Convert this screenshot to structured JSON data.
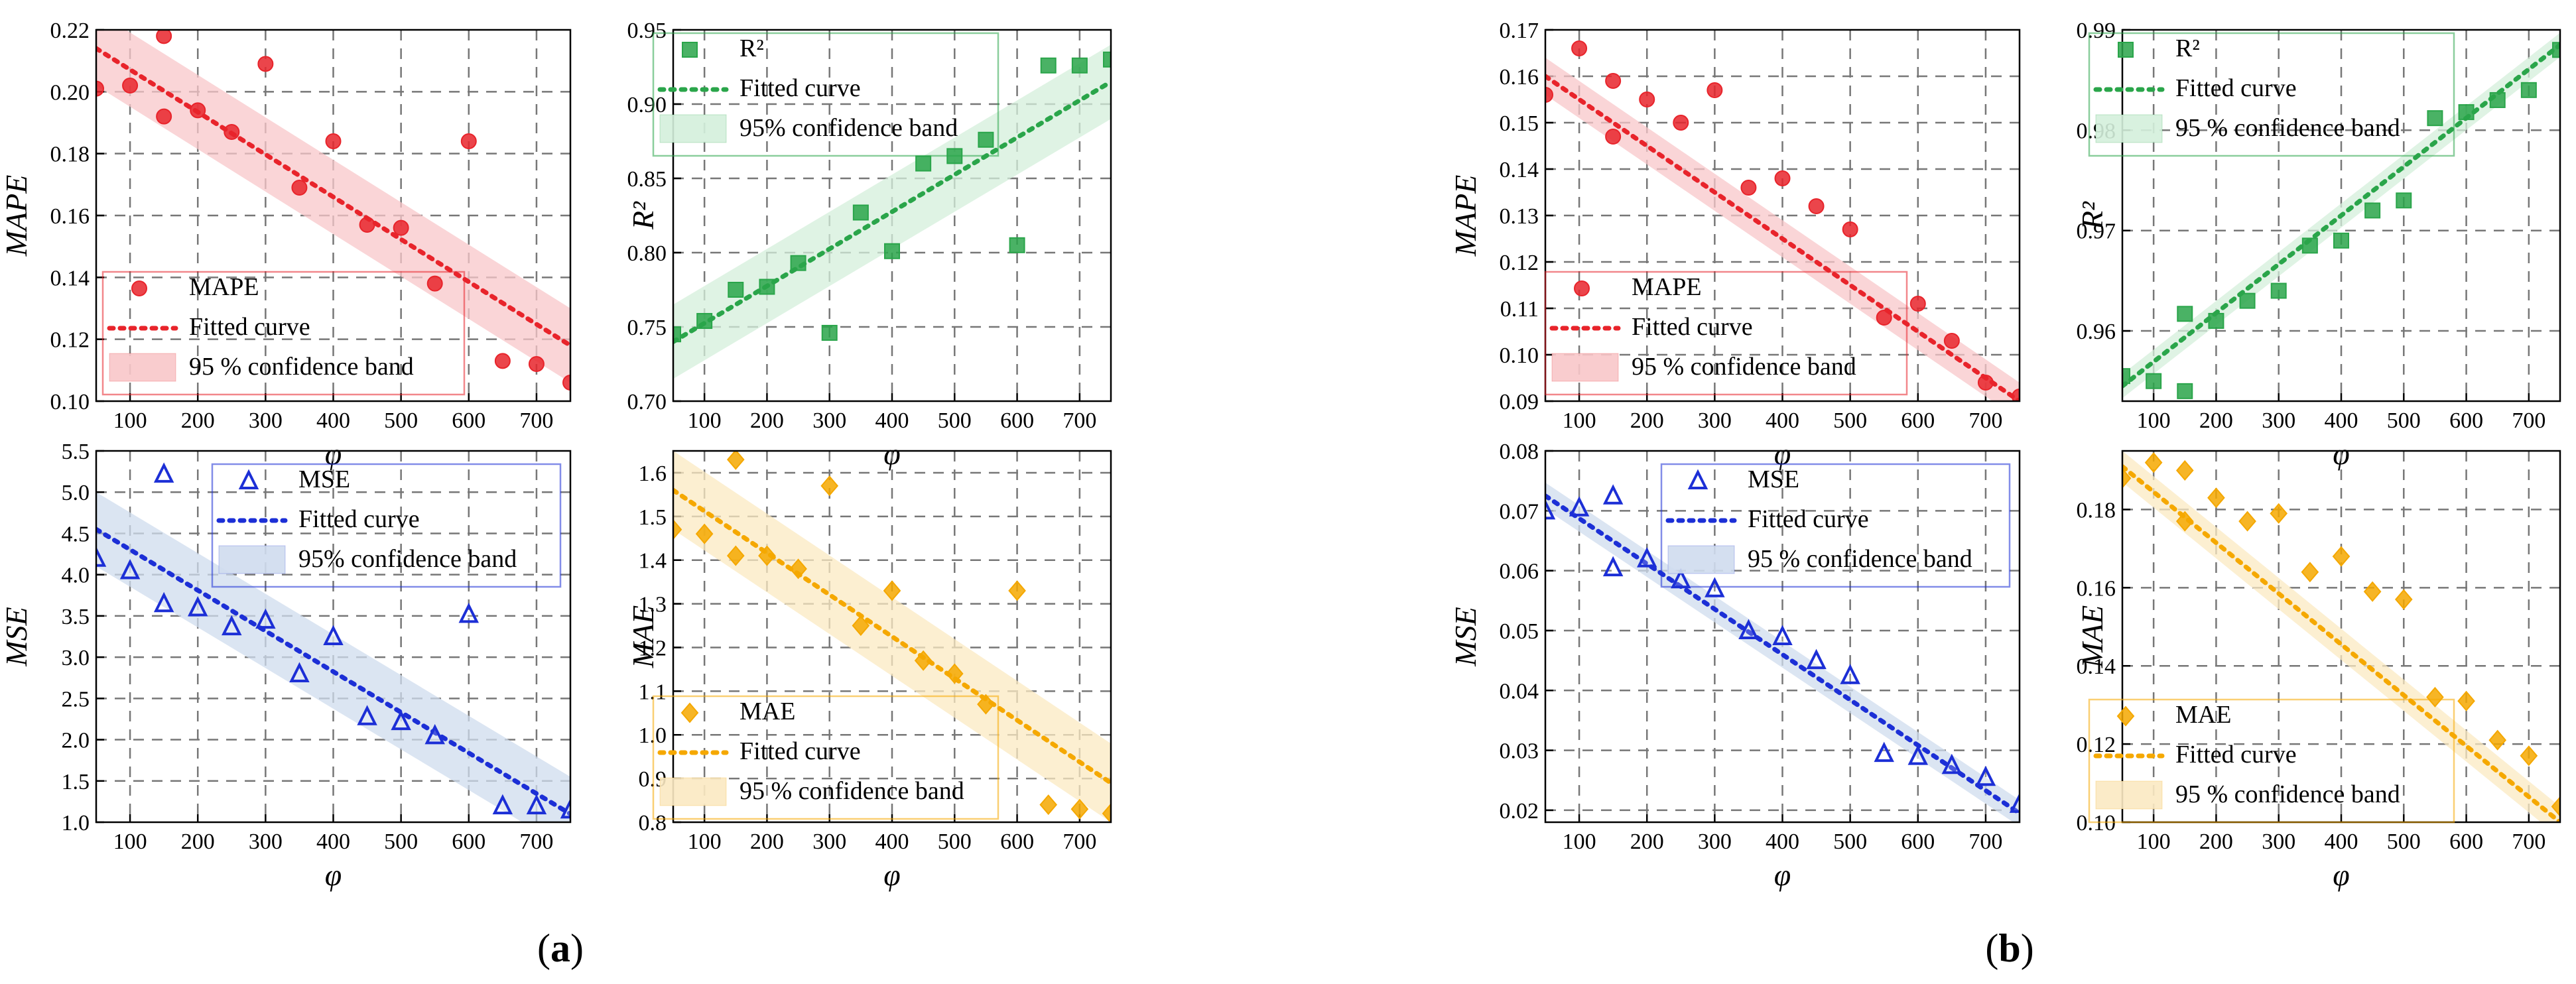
{
  "chart_data": [
    {
      "group": "a",
      "type": "scatter",
      "series_name": "MAPE",
      "ylabel": "MAPE",
      "xlabel": "φ",
      "xlim": [
        50,
        750
      ],
      "ylim": [
        0.1,
        0.22
      ],
      "xticks": [
        "100",
        "200",
        "300",
        "400",
        "500",
        "600",
        "700"
      ],
      "yticks": [
        "0.10",
        "0.12",
        "0.14",
        "0.16",
        "0.18",
        "0.20",
        "0.22"
      ],
      "x": [
        50,
        100,
        150,
        150,
        200,
        250,
        300,
        350,
        400,
        450,
        500,
        550,
        600,
        650,
        700,
        750
      ],
      "y": [
        0.201,
        0.202,
        0.218,
        0.192,
        0.194,
        0.187,
        0.209,
        0.169,
        0.184,
        0.157,
        0.156,
        0.138,
        0.184,
        0.113,
        0.112,
        0.106
      ],
      "fit": {
        "x0": 50,
        "y0": 0.214,
        "x1": 750,
        "y1": 0.118
      },
      "band_halfwidth": 0.012,
      "legend": {
        "marker": "MAPE",
        "fit": "Fitted curve",
        "band": "95 % confidence band"
      },
      "color": "#e8242b",
      "band_color": "#f8c7c9",
      "marker": "circle"
    },
    {
      "group": "a",
      "type": "scatter",
      "series_name": "R²",
      "ylabel": "R²",
      "xlabel": "φ",
      "xlim": [
        50,
        750
      ],
      "ylim": [
        0.7,
        0.95
      ],
      "xticks": [
        "100",
        "200",
        "300",
        "400",
        "500",
        "600",
        "700"
      ],
      "yticks": [
        "0.70",
        "0.75",
        "0.80",
        "0.85",
        "0.90",
        "0.95"
      ],
      "x": [
        50,
        100,
        150,
        200,
        250,
        300,
        350,
        400,
        450,
        500,
        550,
        600,
        650,
        700,
        750
      ],
      "y": [
        0.745,
        0.754,
        0.775,
        0.777,
        0.793,
        0.746,
        0.827,
        0.801,
        0.86,
        0.865,
        0.876,
        0.805,
        0.926,
        0.926,
        0.93
      ],
      "fit": {
        "x0": 50,
        "y0": 0.74,
        "x1": 750,
        "y1": 0.915
      },
      "band_halfwidth": 0.025,
      "legend": {
        "marker": "R²",
        "fit": "Fitted curve",
        "band": "95% confidence band"
      },
      "color": "#2aa54a",
      "band_color": "#d4efdb",
      "marker": "square"
    },
    {
      "group": "a",
      "type": "scatter",
      "series_name": "MSE",
      "ylabel": "MSE",
      "xlabel": "φ",
      "xlim": [
        50,
        750
      ],
      "ylim": [
        1.0,
        5.5
      ],
      "xticks": [
        "100",
        "200",
        "300",
        "400",
        "500",
        "600",
        "700"
      ],
      "yticks": [
        "1.0",
        "1.5",
        "2.0",
        "2.5",
        "3.0",
        "3.5",
        "4.0",
        "4.5",
        "5.0",
        "5.5"
      ],
      "x": [
        50,
        100,
        150,
        150,
        200,
        250,
        300,
        350,
        400,
        450,
        500,
        550,
        600,
        650,
        700,
        750
      ],
      "y": [
        4.2,
        4.05,
        5.22,
        3.65,
        3.6,
        3.37,
        3.45,
        2.8,
        3.25,
        2.28,
        2.22,
        2.05,
        3.52,
        1.2,
        1.2,
        1.15
      ],
      "fit": {
        "x0": 50,
        "y0": 4.55,
        "x1": 750,
        "y1": 1.1
      },
      "band_halfwidth": 0.45,
      "legend": {
        "marker": "MSE",
        "fit": "Fitted curve",
        "band": "95% confidence band"
      },
      "color": "#1c2fd6",
      "band_color": "#cfdcee",
      "marker": "triangle"
    },
    {
      "group": "a",
      "type": "scatter",
      "series_name": "MAE",
      "ylabel": "MAE",
      "xlabel": "φ",
      "xlim": [
        50,
        750
      ],
      "ylim": [
        0.8,
        1.65
      ],
      "xticks": [
        "100",
        "200",
        "300",
        "400",
        "500",
        "600",
        "700"
      ],
      "yticks": [
        "0.8",
        "0.9",
        "1.0",
        "1.1",
        "1.2",
        "1.3",
        "1.4",
        "1.5",
        "1.6"
      ],
      "x": [
        50,
        100,
        150,
        150,
        200,
        250,
        300,
        350,
        400,
        450,
        500,
        550,
        600,
        650,
        700,
        750
      ],
      "y": [
        1.47,
        1.46,
        1.63,
        1.41,
        1.41,
        1.38,
        1.57,
        1.25,
        1.33,
        1.17,
        1.14,
        1.07,
        1.33,
        0.84,
        0.83,
        0.82
      ],
      "fit": {
        "x0": 50,
        "y0": 1.56,
        "x1": 750,
        "y1": 0.89
      },
      "band_halfwidth": 0.09,
      "legend": {
        "marker": "MAE",
        "fit": "Fitted curve",
        "band": "95 % confidence band"
      },
      "color": "#f5a800",
      "band_color": "#fbe9c2",
      "marker": "diamond"
    },
    {
      "group": "b",
      "type": "scatter",
      "series_name": "MAPE",
      "ylabel": "MAPE",
      "xlabel": "φ",
      "xlim": [
        50,
        750
      ],
      "ylim": [
        0.09,
        0.17
      ],
      "xticks": [
        "100",
        "200",
        "300",
        "400",
        "500",
        "600",
        "700"
      ],
      "yticks": [
        "0.09",
        "0.10",
        "0.11",
        "0.12",
        "0.13",
        "0.14",
        "0.15",
        "0.16",
        "0.17"
      ],
      "x": [
        50,
        100,
        150,
        150,
        200,
        250,
        300,
        350,
        400,
        450,
        500,
        550,
        600,
        650,
        700,
        750
      ],
      "y": [
        0.156,
        0.166,
        0.159,
        0.147,
        0.155,
        0.15,
        0.157,
        0.136,
        0.138,
        0.132,
        0.127,
        0.108,
        0.111,
        0.103,
        0.094,
        0.091
      ],
      "fit": {
        "x0": 50,
        "y0": 0.16,
        "x1": 750,
        "y1": 0.09
      },
      "band_halfwidth": 0.004,
      "legend": {
        "marker": "MAPE",
        "fit": "Fitted curve",
        "band": "95 % confidence band"
      },
      "color": "#e8242b",
      "band_color": "#f8c7c9",
      "marker": "circle"
    },
    {
      "group": "b",
      "type": "scatter",
      "series_name": "R²",
      "ylabel": "R²",
      "xlabel": "φ",
      "xlim": [
        50,
        750
      ],
      "ylim": [
        0.953,
        0.99
      ],
      "xticks": [
        "100",
        "200",
        "300",
        "400",
        "500",
        "600",
        "700"
      ],
      "yticks": [
        "0.96",
        "0.97",
        "0.98",
        "0.99"
      ],
      "x": [
        50,
        100,
        150,
        150,
        200,
        250,
        300,
        350,
        400,
        450,
        500,
        550,
        600,
        650,
        700,
        750
      ],
      "y": [
        0.9555,
        0.955,
        0.9617,
        0.954,
        0.961,
        0.963,
        0.964,
        0.9685,
        0.969,
        0.972,
        0.973,
        0.9812,
        0.9818,
        0.983,
        0.984,
        0.988
      ],
      "fit": {
        "x0": 50,
        "y0": 0.9545,
        "x1": 750,
        "y1": 0.9885
      },
      "band_halfwidth": 0.0012,
      "legend": {
        "marker": "R²",
        "fit": "Fitted curve",
        "band": "95 % confidence band"
      },
      "color": "#2aa54a",
      "band_color": "#d4efdb",
      "marker": "square"
    },
    {
      "group": "b",
      "type": "scatter",
      "series_name": "MSE",
      "ylabel": "MSE",
      "xlabel": "φ",
      "xlim": [
        50,
        750
      ],
      "ylim": [
        0.018,
        0.08
      ],
      "xticks": [
        "100",
        "200",
        "300",
        "400",
        "500",
        "600",
        "700"
      ],
      "yticks": [
        "0.02",
        "0.03",
        "0.04",
        "0.05",
        "0.06",
        "0.07",
        "0.08"
      ],
      "x": [
        50,
        100,
        150,
        150,
        200,
        250,
        300,
        350,
        400,
        450,
        500,
        550,
        600,
        650,
        700,
        750
      ],
      "y": [
        0.07,
        0.0705,
        0.0725,
        0.0605,
        0.062,
        0.0585,
        0.057,
        0.05,
        0.049,
        0.045,
        0.0425,
        0.0295,
        0.029,
        0.0275,
        0.0255,
        0.021
      ],
      "fit": {
        "x0": 50,
        "y0": 0.0725,
        "x1": 750,
        "y1": 0.0195
      },
      "band_halfwidth": 0.0022,
      "legend": {
        "marker": "MSE",
        "fit": "Fitted curve",
        "band": "95 % confidence band"
      },
      "color": "#1c2fd6",
      "band_color": "#cfdcee",
      "marker": "triangle"
    },
    {
      "group": "b",
      "type": "scatter",
      "series_name": "MAE",
      "ylabel": "MAE",
      "xlabel": "φ",
      "xlim": [
        50,
        750
      ],
      "ylim": [
        0.1,
        0.195
      ],
      "xticks": [
        "100",
        "200",
        "300",
        "400",
        "500",
        "600",
        "700"
      ],
      "yticks": [
        "0.10",
        "0.12",
        "0.14",
        "0.16",
        "0.18"
      ],
      "x": [
        50,
        100,
        150,
        150,
        200,
        250,
        300,
        350,
        400,
        450,
        500,
        550,
        600,
        650,
        700,
        750
      ],
      "y": [
        0.188,
        0.192,
        0.19,
        0.177,
        0.183,
        0.177,
        0.179,
        0.164,
        0.168,
        0.159,
        0.157,
        0.132,
        0.131,
        0.121,
        0.117,
        0.104
      ],
      "fit": {
        "x0": 50,
        "y0": 0.191,
        "x1": 750,
        "y1": 0.1
      },
      "band_halfwidth": 0.004,
      "legend": {
        "marker": "MAE",
        "fit": "Fitted curve",
        "band": "95 % confidence band"
      },
      "color": "#f5a800",
      "band_color": "#fbe9c2",
      "marker": "diamond"
    }
  ],
  "panel_labels": {
    "a": "(a)",
    "b": "(b)"
  }
}
